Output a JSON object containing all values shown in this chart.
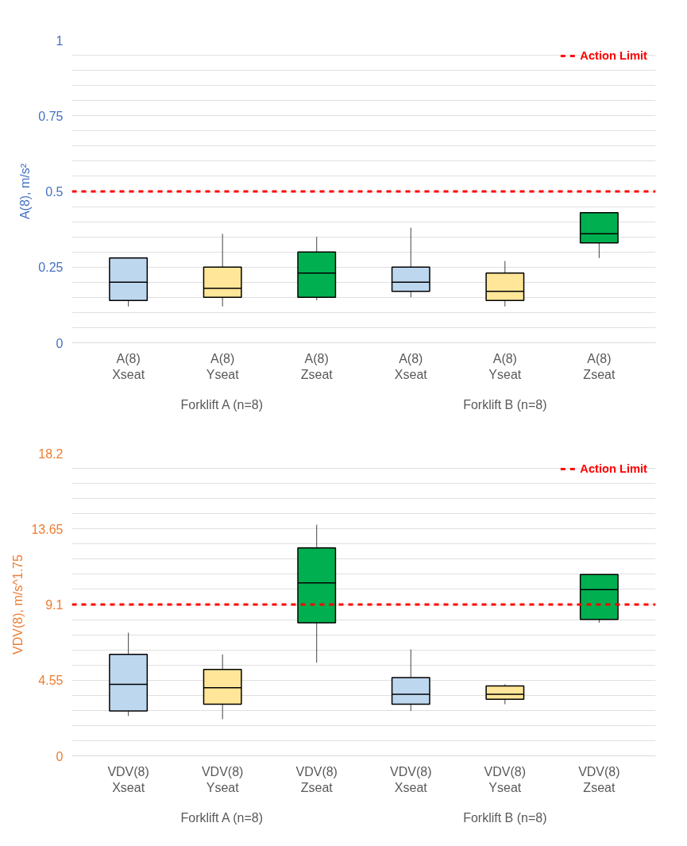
{
  "chart_data": [
    {
      "type": "box",
      "ylabel": "A(8), m/s²",
      "categories": [
        "A(8)\nXseat",
        "A(8)\nYseat",
        "A(8)\nZseat",
        "A(8)\nXseat",
        "A(8)\nYseat",
        "A(8)\nZseat"
      ],
      "colors": [
        "#bdd7ee",
        "#ffe699",
        "#00b050",
        "#bdd7ee",
        "#ffe699",
        "#00b050"
      ],
      "boxes": [
        {
          "low": 0.12,
          "q1": 0.14,
          "median": 0.2,
          "q3": 0.28,
          "high": 0.28
        },
        {
          "low": 0.12,
          "q1": 0.15,
          "median": 0.18,
          "q3": 0.25,
          "high": 0.36
        },
        {
          "low": 0.14,
          "q1": 0.15,
          "median": 0.23,
          "q3": 0.3,
          "high": 0.35
        },
        {
          "low": 0.15,
          "q1": 0.17,
          "median": 0.2,
          "q3": 0.25,
          "high": 0.38
        },
        {
          "low": 0.12,
          "q1": 0.14,
          "median": 0.17,
          "q3": 0.23,
          "high": 0.27
        },
        {
          "low": 0.28,
          "q1": 0.33,
          "median": 0.36,
          "q3": 0.43,
          "high": 0.43
        }
      ],
      "ylim": [
        0,
        1
      ],
      "yticks": [
        0,
        {
          "value": 0.05,
          "label": null
        },
        {
          "value": 0.1,
          "label": null
        },
        {
          "value": 0.15,
          "label": null
        },
        {
          "value": 0.2,
          "label": null
        },
        0.25,
        {
          "value": 0.3,
          "label": null
        },
        {
          "value": 0.35,
          "label": null
        },
        {
          "value": 0.4,
          "label": null
        },
        {
          "value": 0.45,
          "label": null
        },
        0.5,
        {
          "value": 0.55,
          "label": null
        },
        {
          "value": 0.6,
          "label": null
        },
        {
          "value": 0.65,
          "label": null
        },
        {
          "value": 0.7,
          "label": null
        },
        0.75,
        {
          "value": 0.8,
          "label": null
        },
        {
          "value": 0.85,
          "label": null
        },
        {
          "value": 0.9,
          "label": null
        },
        {
          "value": 0.95,
          "label": null
        },
        1
      ],
      "grid": "y",
      "ref_lines": [
        {
          "axis": "y",
          "value": 0.5,
          "label": "Action Limit",
          "color": "#ff0000",
          "line_style": "dashed"
        }
      ],
      "legend": "top right",
      "annotations": [
        "Forklift A (n=8)",
        "Forklift B (n=8)"
      ]
    },
    {
      "type": "box",
      "ylabel": "VDV(8), m/s^1.75",
      "categories": [
        "VDV(8)\nXseat",
        "VDV(8)\nYseat",
        "VDV(8)\nZseat",
        "VDV(8)\nXseat",
        "VDV(8)\nYseat",
        "VDV(8)\nZseat"
      ],
      "colors": [
        "#bdd7ee",
        "#ffe699",
        "#00b050",
        "#bdd7ee",
        "#ffe699",
        "#00b050"
      ],
      "boxes": [
        {
          "low": 2.4,
          "q1": 2.7,
          "median": 4.3,
          "q3": 6.1,
          "high": 7.4
        },
        {
          "low": 2.2,
          "q1": 3.1,
          "median": 4.1,
          "q3": 5.2,
          "high": 6.1
        },
        {
          "low": 5.6,
          "q1": 8.0,
          "median": 10.4,
          "q3": 12.5,
          "high": 13.9
        },
        {
          "low": 2.7,
          "q1": 3.1,
          "median": 3.7,
          "q3": 4.7,
          "high": 6.4
        },
        {
          "low": 3.1,
          "q1": 3.4,
          "median": 3.7,
          "q3": 4.2,
          "high": 4.3
        },
        {
          "low": 8.0,
          "q1": 8.2,
          "median": 10.0,
          "q3": 10.9,
          "high": 10.9
        }
      ],
      "ylim": [
        0,
        18.2
      ],
      "yticks": [
        0,
        {
          "value": 0.91,
          "label": null
        },
        {
          "value": 1.82,
          "label": null
        },
        {
          "value": 2.73,
          "label": null
        },
        {
          "value": 3.64,
          "label": null
        },
        4.55,
        {
          "value": 5.46,
          "label": null
        },
        {
          "value": 6.37,
          "label": null
        },
        {
          "value": 7.28,
          "label": null
        },
        {
          "value": 8.19,
          "label": null
        },
        9.1,
        {
          "value": 10.01,
          "label": null
        },
        {
          "value": 10.92,
          "label": null
        },
        {
          "value": 11.83,
          "label": null
        },
        {
          "value": 12.74,
          "label": null
        },
        13.65,
        {
          "value": 14.56,
          "label": null
        },
        {
          "value": 15.47,
          "label": null
        },
        {
          "value": 16.38,
          "label": null
        },
        {
          "value": 17.29,
          "label": null
        },
        18.2
      ],
      "grid": "y",
      "ref_lines": [
        {
          "axis": "y",
          "value": 9.1,
          "label": "Action Limit",
          "color": "#ff0000",
          "line_style": "dashed"
        }
      ],
      "legend": "top right",
      "annotations": [
        "Forklift A (n=8)",
        "Forklift B (n=8)"
      ]
    }
  ]
}
